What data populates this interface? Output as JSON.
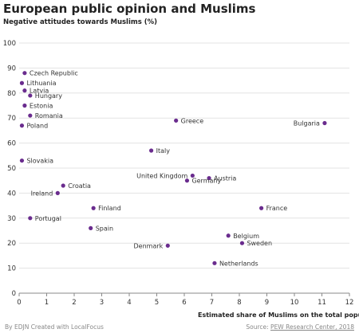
{
  "chart_data": {
    "type": "scatter",
    "title": "European public opinion and Muslims",
    "subtitle": "Negative attitudes towards Muslims (%)",
    "xlabel": "Estimated share of Muslims on the total population (%)",
    "xlim": [
      0,
      12
    ],
    "ylim": [
      0,
      100
    ],
    "x_ticks": [
      0,
      1,
      2,
      3,
      4,
      5,
      6,
      7,
      8,
      9,
      10,
      11,
      12
    ],
    "y_ticks": [
      0,
      10,
      20,
      30,
      40,
      50,
      60,
      70,
      80,
      90,
      100
    ],
    "grid": true,
    "point_color": "#6a2c8e",
    "points": [
      {
        "label": "Czech Republic",
        "x": 0.2,
        "y": 88,
        "side": "right"
      },
      {
        "label": "Lithuania",
        "x": 0.1,
        "y": 84,
        "side": "right"
      },
      {
        "label": "Latvia",
        "x": 0.2,
        "y": 81,
        "side": "right"
      },
      {
        "label": "Hungary",
        "x": 0.4,
        "y": 79,
        "side": "right"
      },
      {
        "label": "Estonia",
        "x": 0.2,
        "y": 75,
        "side": "right"
      },
      {
        "label": "Romania",
        "x": 0.4,
        "y": 71,
        "side": "right"
      },
      {
        "label": "Poland",
        "x": 0.1,
        "y": 67,
        "side": "right"
      },
      {
        "label": "Slovakia",
        "x": 0.1,
        "y": 53,
        "side": "right"
      },
      {
        "label": "Greece",
        "x": 5.7,
        "y": 69,
        "side": "right"
      },
      {
        "label": "Bulgaria",
        "x": 11.1,
        "y": 68,
        "side": "left"
      },
      {
        "label": "Italy",
        "x": 4.8,
        "y": 57,
        "side": "right"
      },
      {
        "label": "United Kingdom",
        "x": 6.3,
        "y": 47,
        "side": "left"
      },
      {
        "label": "Austria",
        "x": 6.9,
        "y": 46,
        "side": "right"
      },
      {
        "label": "Germany",
        "x": 6.1,
        "y": 45,
        "side": "right"
      },
      {
        "label": "Croatia",
        "x": 1.6,
        "y": 43,
        "side": "right"
      },
      {
        "label": "Ireland",
        "x": 1.4,
        "y": 40,
        "side": "left"
      },
      {
        "label": "Finland",
        "x": 2.7,
        "y": 34,
        "side": "right"
      },
      {
        "label": "France",
        "x": 8.8,
        "y": 34,
        "side": "right"
      },
      {
        "label": "Portugal",
        "x": 0.4,
        "y": 30,
        "side": "right"
      },
      {
        "label": "Spain",
        "x": 2.6,
        "y": 26,
        "side": "right"
      },
      {
        "label": "Belgium",
        "x": 7.6,
        "y": 23,
        "side": "right"
      },
      {
        "label": "Sweden",
        "x": 8.1,
        "y": 20,
        "side": "right"
      },
      {
        "label": "Denmark",
        "x": 5.4,
        "y": 19,
        "side": "left"
      },
      {
        "label": "Netherlands",
        "x": 7.1,
        "y": 12,
        "side": "right"
      }
    ]
  },
  "footer": {
    "credit": "By EDJN  Created with LocalFocus",
    "source_prefix": "Source: ",
    "source_name": "PEW Research Center, 2018"
  }
}
